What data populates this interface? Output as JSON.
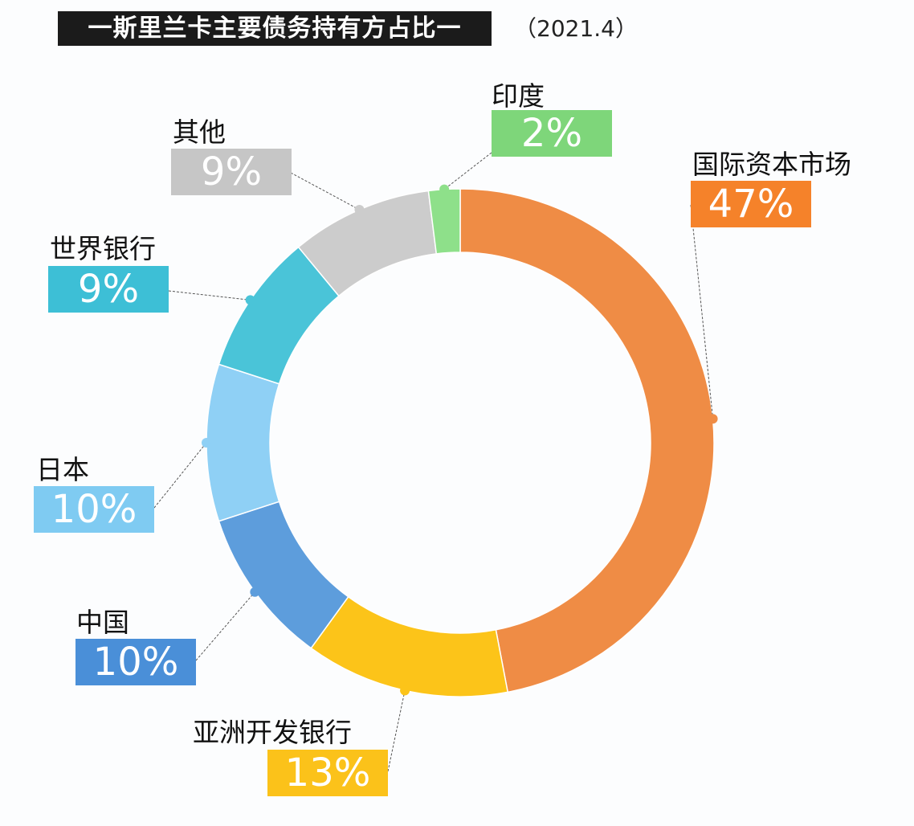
{
  "title": "一斯里兰卡主要债务持有方占比一",
  "date": "（2021.4）",
  "chart_data": {
    "type": "pie",
    "subtype": "donut",
    "title": "一斯里兰卡主要债务持有方占比一",
    "subtitle": "（2021.4）",
    "direction": "clockwise from top",
    "slices": [
      {
        "label": "国际资本市场",
        "value": 47,
        "value_label": "47%",
        "color": "#ef8c45",
        "label_color": "#f5822a"
      },
      {
        "label": "亚洲开发银行",
        "value": 13,
        "value_label": "13%",
        "color": "#fcc419",
        "label_color": "#fbc21a"
      },
      {
        "label": "中国",
        "value": 10,
        "value_label": "10%",
        "color": "#5d9ddc",
        "label_color": "#4a8fd8"
      },
      {
        "label": "日本",
        "value": 10,
        "value_label": "10%",
        "color": "#8fd0f5",
        "label_color": "#7fcbf2"
      },
      {
        "label": "世界银行",
        "value": 9,
        "value_label": "9%",
        "color": "#4ac4d8",
        "label_color": "#3dbfd6"
      },
      {
        "label": "其他",
        "value": 9,
        "value_label": "9%",
        "color": "#cccccc",
        "label_color": "#c6c6c6"
      },
      {
        "label": "印度",
        "value": 2,
        "value_label": "2%",
        "color": "#8ee08a",
        "label_color": "#7ed67a"
      }
    ]
  }
}
